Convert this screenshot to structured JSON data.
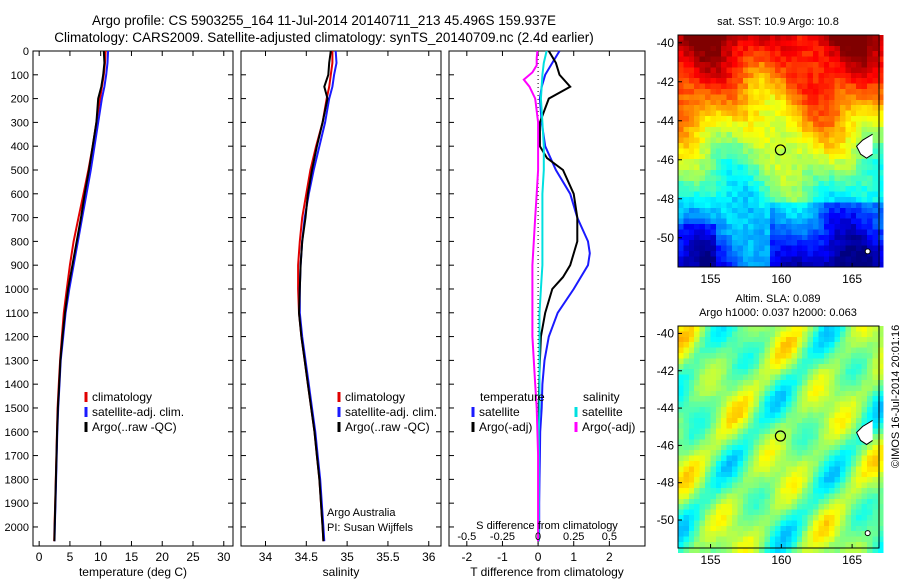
{
  "header": {
    "line1": "Argo profile: CS 5903255_164 11-Jul-2014 20140711_213 45.496S 159.937E",
    "line2": "Climatology: CARS2009. Satellite-adjusted climatology: synTS_20140709.nc (2.4d earlier)"
  },
  "side_label": "©IMOS 16-Jul-2014 20:01:16",
  "colors": {
    "climatology": "#e00000",
    "satellite": "#1a1aff",
    "argo": "#000000",
    "temp_sat": "#00e0e0",
    "sal_argo": "#ff00ff",
    "marker": "#000000"
  },
  "chart_data": [
    {
      "id": "temperature",
      "type": "line",
      "xlabel": "temperature (deg C)",
      "xlim": [
        -1,
        31.5
      ],
      "xticks": [
        0,
        5,
        10,
        15,
        20,
        25,
        30
      ],
      "ylim": [
        2080,
        0
      ],
      "yticks": [
        0,
        100,
        200,
        300,
        400,
        500,
        600,
        700,
        800,
        900,
        1000,
        1100,
        1200,
        1300,
        1400,
        1500,
        1600,
        1700,
        1800,
        1900,
        2000
      ],
      "legend": [
        "climatology",
        "satellite-adj. clim.",
        "Argo(..raw -QC)"
      ],
      "series": [
        {
          "name": "climatology",
          "color": "#e00000",
          "pressure": [
            0,
            50,
            100,
            150,
            200,
            300,
            400,
            500,
            600,
            700,
            800,
            900,
            1000,
            1100,
            1200,
            1300,
            1400,
            1500,
            1600,
            1700,
            1800,
            1900,
            2000,
            2060
          ],
          "values": [
            10.8,
            10.7,
            10.5,
            10.2,
            9.9,
            9.3,
            8.7,
            8.0,
            7.2,
            6.4,
            5.6,
            5.0,
            4.5,
            4.0,
            3.7,
            3.4,
            3.2,
            3.0,
            2.9,
            2.8,
            2.7,
            2.6,
            2.5,
            2.45
          ]
        },
        {
          "name": "satellite-adj. clim.",
          "color": "#1a1aff",
          "pressure": [
            0,
            50,
            100,
            150,
            200,
            300,
            400,
            500,
            600,
            700,
            800,
            900,
            1000,
            1100,
            1200,
            1300,
            1400,
            1500,
            1600,
            1700,
            1800,
            1900,
            2000,
            2060
          ],
          "values": [
            11.2,
            11.1,
            10.9,
            10.6,
            10.2,
            9.6,
            9.0,
            8.4,
            7.7,
            7.0,
            6.3,
            5.6,
            4.9,
            4.3,
            3.9,
            3.5,
            3.3,
            3.1,
            2.95,
            2.85,
            2.75,
            2.65,
            2.55,
            2.5
          ]
        },
        {
          "name": "Argo(..raw -QC)",
          "color": "#000000",
          "pressure": [
            0,
            50,
            100,
            150,
            200,
            300,
            400,
            500,
            600,
            700,
            800,
            900,
            1000,
            1100,
            1200,
            1300,
            1400,
            1500,
            1600,
            1700,
            1800,
            1900,
            2000,
            2060
          ],
          "values": [
            10.5,
            10.6,
            10.4,
            10.1,
            9.6,
            9.3,
            8.7,
            8.1,
            7.4,
            6.8,
            6.1,
            5.4,
            4.7,
            4.2,
            3.8,
            3.45,
            3.25,
            3.05,
            2.92,
            2.82,
            2.72,
            2.62,
            2.52,
            2.48
          ]
        }
      ]
    },
    {
      "id": "salinity",
      "type": "line",
      "xlabel": "salinity",
      "xlim": [
        33.7,
        36.15
      ],
      "xticks": [
        34,
        34.5,
        35,
        35.5,
        36
      ],
      "ylim": [
        2080,
        0
      ],
      "legend": [
        "climatology",
        "satellite-adj. clim.",
        "Argo(..raw -QC)"
      ],
      "credit": [
        "Argo Australia",
        "PI: Susan Wijffels"
      ],
      "series": [
        {
          "name": "climatology",
          "color": "#e00000",
          "pressure": [
            0,
            50,
            100,
            150,
            200,
            300,
            400,
            500,
            600,
            700,
            800,
            900,
            1000,
            1100,
            1200,
            1300,
            1400,
            1500,
            1600,
            1700,
            1800,
            1900,
            2000,
            2060
          ],
          "values": [
            34.82,
            34.82,
            34.8,
            34.78,
            34.75,
            34.7,
            34.62,
            34.55,
            34.5,
            34.45,
            34.42,
            34.4,
            34.4,
            34.41,
            34.44,
            34.48,
            34.52,
            34.56,
            34.6,
            34.63,
            34.66,
            34.68,
            34.7,
            34.71
          ]
        },
        {
          "name": "satellite-adj. clim.",
          "color": "#1a1aff",
          "pressure": [
            0,
            50,
            100,
            150,
            200,
            300,
            400,
            500,
            600,
            700,
            800,
            900,
            1000,
            1100,
            1200,
            1300,
            1400,
            1500,
            1600,
            1700,
            1800,
            1900,
            2000,
            2060
          ],
          "values": [
            34.86,
            34.87,
            34.84,
            34.82,
            34.78,
            34.73,
            34.66,
            34.59,
            34.53,
            34.48,
            34.45,
            34.43,
            34.42,
            34.42,
            34.45,
            34.49,
            34.53,
            34.57,
            34.61,
            34.64,
            34.67,
            34.69,
            34.71,
            34.72
          ]
        },
        {
          "name": "Argo(..raw -QC)",
          "color": "#000000",
          "pressure": [
            0,
            50,
            100,
            150,
            200,
            300,
            400,
            500,
            600,
            700,
            800,
            900,
            1000,
            1100,
            1200,
            1300,
            1400,
            1500,
            1600,
            1700,
            1800,
            1900,
            2000,
            2060
          ],
          "values": [
            34.8,
            34.78,
            34.77,
            34.72,
            34.76,
            34.7,
            34.63,
            34.57,
            34.52,
            34.49,
            34.45,
            34.43,
            34.42,
            34.41,
            34.44,
            34.48,
            34.52,
            34.56,
            34.6,
            34.63,
            34.66,
            34.68,
            34.7,
            34.71
          ]
        }
      ]
    },
    {
      "id": "difference",
      "type": "line",
      "xlabel": "T difference from climatology",
      "xlabel_top": "S difference from climatology",
      "xlim": [
        -2.5,
        3
      ],
      "xticks": [
        -2,
        -1,
        0,
        1,
        2
      ],
      "sticks": [
        -0.5,
        -0.25,
        0,
        0.25,
        0.5
      ],
      "sticks_scale": 4,
      "ylim": [
        2080,
        0
      ],
      "legend_temperature": {
        "title": "temperature",
        "items": [
          "satellite",
          "Argo(-adj)"
        ]
      },
      "legend_salinity": {
        "title": "salinity",
        "items": [
          "satellite",
          "Argo(-adj)"
        ]
      },
      "series": [
        {
          "name": "temperature satellite",
          "color": "#1a1aff",
          "pressure": [
            0,
            50,
            100,
            150,
            200,
            300,
            400,
            500,
            600,
            700,
            800,
            850,
            900,
            1000,
            1100,
            1200,
            1300,
            1400,
            1500,
            1600,
            1700,
            1800,
            1900,
            2000,
            2060
          ],
          "values": [
            0.6,
            0.4,
            0.2,
            0.1,
            0.05,
            0.1,
            0.2,
            0.5,
            0.9,
            1.1,
            1.4,
            1.45,
            1.4,
            1.0,
            0.55,
            0.3,
            0.18,
            0.12,
            0.1,
            0.06,
            0.05,
            0.04,
            0.03,
            0.03,
            0.02
          ]
        },
        {
          "name": "temperature Argo(-adj)",
          "color": "#000000",
          "pressure": [
            0,
            50,
            100,
            150,
            200,
            300,
            400,
            450,
            500,
            600,
            700,
            800,
            900,
            950,
            1000,
            1100,
            1200,
            1300,
            1400,
            1500,
            1600,
            1700,
            1800,
            1900,
            2000,
            2060
          ],
          "values": [
            0.3,
            0.5,
            0.6,
            0.9,
            0.3,
            0.05,
            0.05,
            0.25,
            0.7,
            1.0,
            1.1,
            1.1,
            0.9,
            0.7,
            0.4,
            0.2,
            0.08,
            0.05,
            0.03,
            0.02,
            0.02,
            0.01,
            0.01,
            0.01,
            0.01,
            0.01
          ]
        },
        {
          "name": "salinity satellite",
          "color": "#00e0e0",
          "pressure": [
            0,
            50,
            100,
            200,
            300,
            400,
            500,
            600,
            700,
            800,
            900,
            1000,
            1100,
            1200,
            1300,
            1400,
            1500,
            1600,
            1700,
            1800,
            1900,
            2000,
            2060
          ],
          "values": [
            0.06,
            0.04,
            0.03,
            0.02,
            0.03,
            0.04,
            0.04,
            0.03,
            0.03,
            0.03,
            0.03,
            0.02,
            0.01,
            0.01,
            0.01,
            0.01,
            0.01,
            0.005,
            0.005,
            0.005,
            0.005,
            0.005,
            0.005
          ]
        },
        {
          "name": "salinity Argo(-adj)",
          "color": "#ff00ff",
          "pressure": [
            0,
            30,
            60,
            90,
            120,
            150,
            200,
            300,
            400,
            500,
            600,
            700,
            800,
            900,
            1000,
            1100,
            1200,
            1300,
            1400,
            1500,
            1600,
            1700,
            1800,
            1900,
            2000,
            2060
          ],
          "values": [
            -0.005,
            -0.01,
            -0.01,
            -0.04,
            -0.1,
            -0.06,
            -0.02,
            0.0,
            0.0,
            0.0,
            -0.01,
            -0.02,
            -0.03,
            -0.04,
            -0.04,
            -0.04,
            -0.04,
            -0.03,
            -0.02,
            -0.01,
            -0.005,
            0.0,
            0.0,
            0.0,
            0.0,
            0.0
          ]
        }
      ]
    },
    {
      "id": "sst_map",
      "type": "heatmap",
      "title": "sat. SST: 10.9  Argo: 10.8",
      "xlim": [
        152.7,
        166.9
      ],
      "ylim": [
        -51.5,
        -39.6
      ],
      "xticks": [
        155,
        160,
        165
      ],
      "yticks": [
        -40,
        -42,
        -44,
        -46,
        -48,
        -50
      ],
      "marker": {
        "lon": 159.937,
        "lat": -45.496
      },
      "palette": "jet"
    },
    {
      "id": "sla_map",
      "type": "heatmap",
      "title": [
        "Altim. SLA: 0.089",
        "Argo h1000: 0.037 h2000: 0.063"
      ],
      "xlim": [
        152.7,
        166.9
      ],
      "ylim": [
        -51.5,
        -39.6
      ],
      "xticks": [
        155,
        160,
        165
      ],
      "yticks": [
        -40,
        -42,
        -44,
        -46,
        -48,
        -50
      ],
      "marker": {
        "lon": 159.937,
        "lat": -45.496
      },
      "palette": "jet"
    }
  ]
}
